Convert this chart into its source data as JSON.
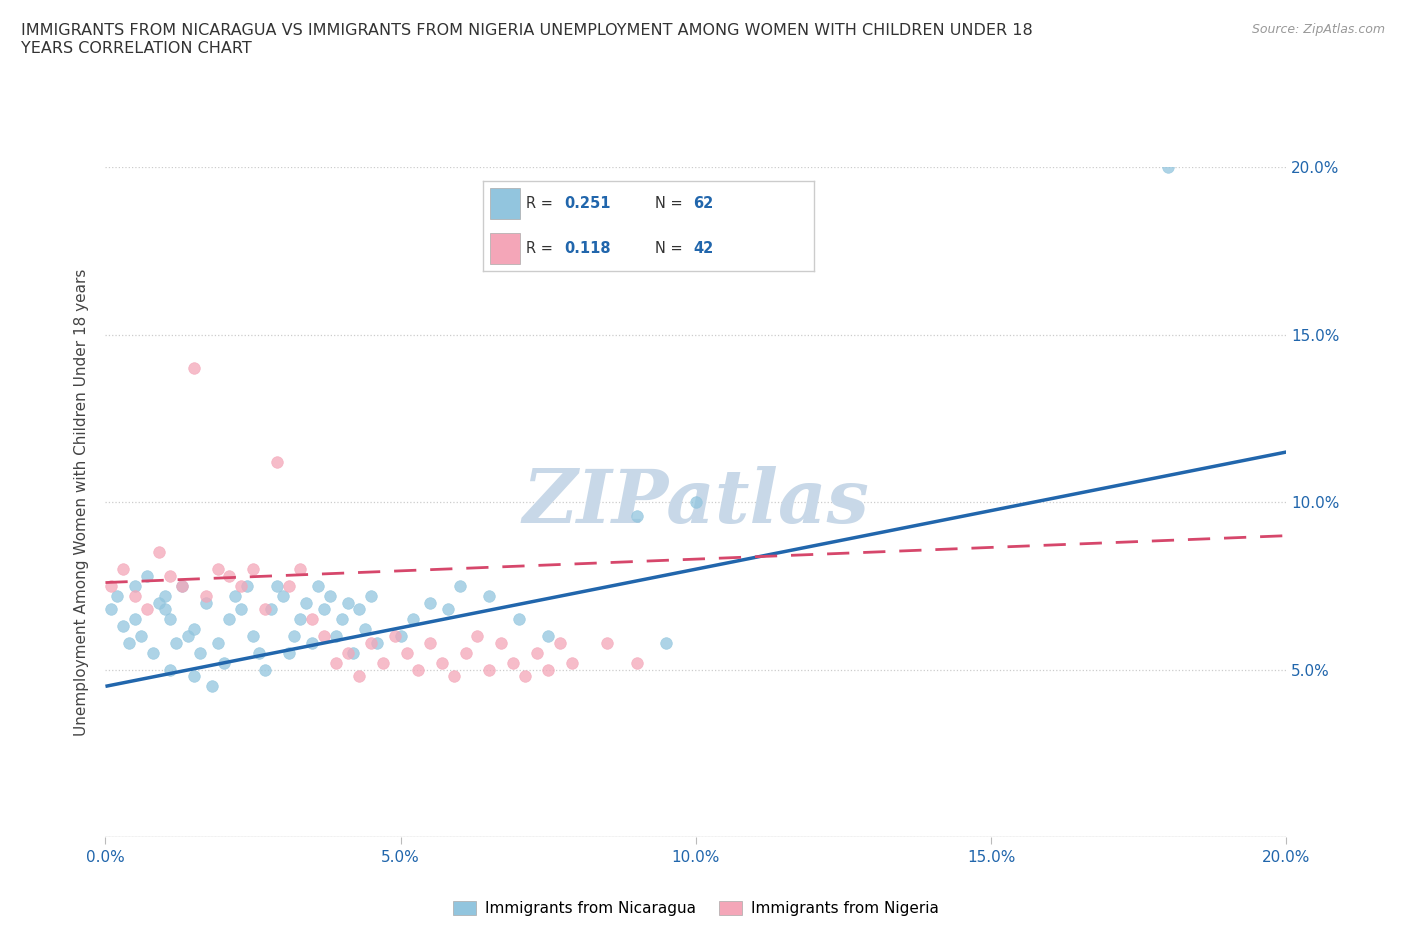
{
  "title": "IMMIGRANTS FROM NICARAGUA VS IMMIGRANTS FROM NIGERIA UNEMPLOYMENT AMONG WOMEN WITH CHILDREN UNDER 18\nYEARS CORRELATION CHART",
  "source": "Source: ZipAtlas.com",
  "ylabel": "Unemployment Among Women with Children Under 18 years",
  "xlim": [
    0.0,
    0.2
  ],
  "ylim": [
    0.0,
    0.2
  ],
  "xticks": [
    0.0,
    0.05,
    0.1,
    0.15,
    0.2
  ],
  "yticks": [
    0.0,
    0.05,
    0.1,
    0.15,
    0.2
  ],
  "xticklabels": [
    "0.0%",
    "5.0%",
    "10.0%",
    "15.0%",
    "20.0%"
  ],
  "yticklabels": [
    "",
    "5.0%",
    "10.0%",
    "15.0%",
    "20.0%"
  ],
  "nicaragua_color": "#92c5de",
  "nigeria_color": "#f4a6b8",
  "nicaragua_line_color": "#2166ac",
  "nigeria_line_color": "#d6476b",
  "r_nicaragua": 0.251,
  "n_nicaragua": 62,
  "r_nigeria": 0.118,
  "n_nigeria": 42,
  "watermark": "ZIPatlas",
  "watermark_color": "#c8d8e8",
  "legend_r_color": "#2166ac",
  "nicaragua_x": [
    0.001,
    0.002,
    0.003,
    0.004,
    0.005,
    0.005,
    0.006,
    0.007,
    0.008,
    0.009,
    0.01,
    0.01,
    0.011,
    0.011,
    0.012,
    0.013,
    0.014,
    0.015,
    0.015,
    0.016,
    0.017,
    0.018,
    0.019,
    0.02,
    0.021,
    0.022,
    0.023,
    0.024,
    0.025,
    0.026,
    0.027,
    0.028,
    0.029,
    0.03,
    0.031,
    0.032,
    0.033,
    0.034,
    0.035,
    0.036,
    0.037,
    0.038,
    0.039,
    0.04,
    0.041,
    0.042,
    0.043,
    0.044,
    0.045,
    0.046,
    0.05,
    0.052,
    0.055,
    0.058,
    0.06,
    0.065,
    0.07,
    0.075,
    0.09,
    0.095,
    0.1,
    0.18
  ],
  "nicaragua_y": [
    0.068,
    0.072,
    0.063,
    0.058,
    0.075,
    0.065,
    0.06,
    0.078,
    0.055,
    0.07,
    0.072,
    0.068,
    0.05,
    0.065,
    0.058,
    0.075,
    0.06,
    0.048,
    0.062,
    0.055,
    0.07,
    0.045,
    0.058,
    0.052,
    0.065,
    0.072,
    0.068,
    0.075,
    0.06,
    0.055,
    0.05,
    0.068,
    0.075,
    0.072,
    0.055,
    0.06,
    0.065,
    0.07,
    0.058,
    0.075,
    0.068,
    0.072,
    0.06,
    0.065,
    0.07,
    0.055,
    0.068,
    0.062,
    0.072,
    0.058,
    0.06,
    0.065,
    0.07,
    0.068,
    0.075,
    0.072,
    0.065,
    0.06,
    0.096,
    0.058,
    0.1,
    0.2
  ],
  "nigeria_x": [
    0.001,
    0.003,
    0.005,
    0.007,
    0.009,
    0.011,
    0.013,
    0.015,
    0.017,
    0.019,
    0.021,
    0.023,
    0.025,
    0.027,
    0.029,
    0.031,
    0.033,
    0.035,
    0.037,
    0.039,
    0.041,
    0.043,
    0.045,
    0.047,
    0.049,
    0.051,
    0.053,
    0.055,
    0.057,
    0.059,
    0.061,
    0.063,
    0.065,
    0.067,
    0.069,
    0.071,
    0.073,
    0.075,
    0.077,
    0.079,
    0.085,
    0.09
  ],
  "nigeria_y": [
    0.075,
    0.08,
    0.072,
    0.068,
    0.085,
    0.078,
    0.075,
    0.14,
    0.072,
    0.08,
    0.078,
    0.075,
    0.08,
    0.068,
    0.112,
    0.075,
    0.08,
    0.065,
    0.06,
    0.052,
    0.055,
    0.048,
    0.058,
    0.052,
    0.06,
    0.055,
    0.05,
    0.058,
    0.052,
    0.048,
    0.055,
    0.06,
    0.05,
    0.058,
    0.052,
    0.048,
    0.055,
    0.05,
    0.058,
    0.052,
    0.058,
    0.052
  ]
}
